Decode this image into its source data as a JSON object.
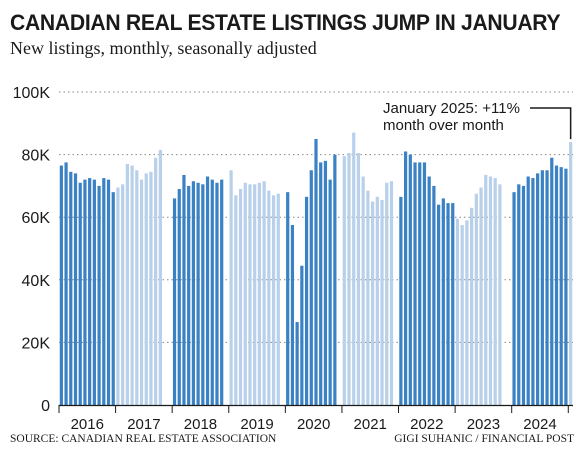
{
  "chart_data": {
    "type": "bar",
    "title": "CANADIAN REAL ESTATE LISTINGS JUMP IN JANUARY",
    "subtitle": "New listings, monthly, seasonally adjusted",
    "ylim": [
      0,
      100000
    ],
    "yticks": [
      {
        "value": 0,
        "label": "0"
      },
      {
        "value": 20000,
        "label": "20K"
      },
      {
        "value": 40000,
        "label": "40K"
      },
      {
        "value": 60000,
        "label": "60K"
      },
      {
        "value": 80000,
        "label": "80K"
      },
      {
        "value": 100000,
        "label": "100K"
      }
    ],
    "grid": true,
    "colors": {
      "dark": "#3b82c4",
      "light": "#b8d0ea",
      "text": "#1a1a1a",
      "grid": "#888888"
    },
    "years": [
      {
        "label": "2016",
        "shade": "dark",
        "values": [
          76500,
          77500,
          74500,
          74000,
          71000,
          72000,
          72500,
          72000,
          70000,
          72500,
          72000,
          68000
        ]
      },
      {
        "label": "2017",
        "shade": "light",
        "values": [
          69500,
          70500,
          77000,
          76500,
          75000,
          72000,
          74000,
          74500,
          79000,
          81500,
          null,
          null
        ]
      },
      {
        "label": "2018",
        "shade": "dark",
        "values": [
          66000,
          69000,
          73500,
          70000,
          71500,
          71000,
          70500,
          73000,
          72000,
          71000,
          72000,
          null
        ]
      },
      {
        "label": "2019",
        "shade": "light",
        "values": [
          75000,
          67000,
          69000,
          71000,
          70500,
          70500,
          71000,
          71500,
          68500,
          67000,
          67500,
          null
        ]
      },
      {
        "label": "2020",
        "shade": "dark",
        "values": [
          68000,
          57500,
          26500,
          44500,
          66500,
          75000,
          85000,
          77500,
          78000,
          72000,
          80000,
          null
        ]
      },
      {
        "label": "2021",
        "shade": "light",
        "values": [
          79500,
          80500,
          87000,
          80500,
          73000,
          68500,
          65000,
          66500,
          65500,
          71000,
          71500,
          null
        ]
      },
      {
        "label": "2022",
        "shade": "dark",
        "values": [
          66500,
          81000,
          80000,
          77500,
          77500,
          77500,
          73000,
          70000,
          64000,
          66000,
          64500,
          64500
        ]
      },
      {
        "label": "2023",
        "shade": "light",
        "values": [
          59500,
          57500,
          59000,
          63000,
          67500,
          69500,
          73500,
          73000,
          72500,
          70500,
          null,
          null
        ]
      },
      {
        "label": "2024",
        "shade": "dark",
        "values": [
          68000,
          70500,
          70000,
          73000,
          72500,
          74000,
          75000,
          75000,
          79000,
          76500,
          76000,
          75500
        ]
      },
      {
        "label": "",
        "shade": "light",
        "values": [
          84000
        ]
      }
    ],
    "annotation": {
      "line1": "January 2025: +11%",
      "line2": "month over month"
    }
  },
  "footer": {
    "source": "SOURCE: CANADIAN REAL ESTATE ASSOCIATION",
    "credit": "GIGI SUHANIC / FINANCIAL POST"
  }
}
